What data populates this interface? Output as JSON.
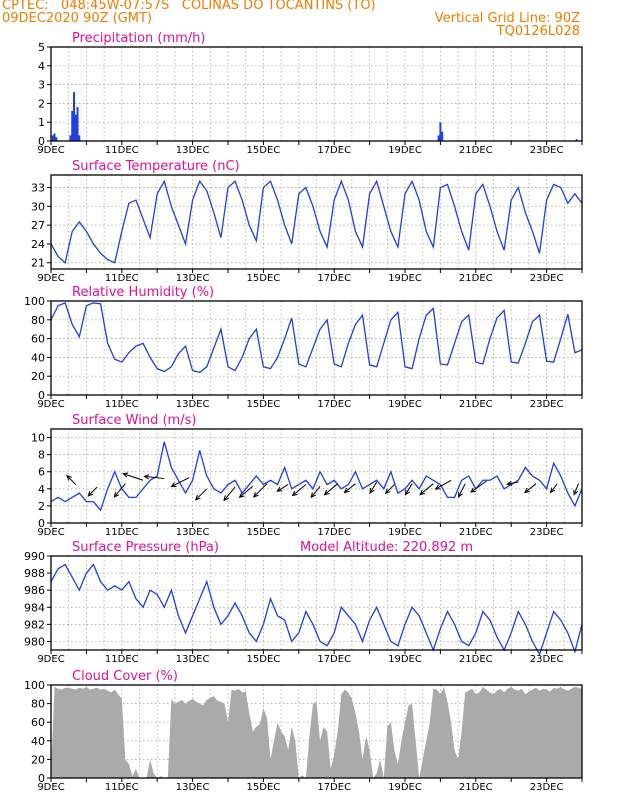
{
  "header": {
    "line1": "CPTEC:   048:45W-07:57S   COLINAS DO TOCANTINS (TO)",
    "line2_left": "09DEC2020 90Z (GMT)",
    "line2_right": "Vertical Grid Line: 90Z",
    "line3_right": "TQ0126L028"
  },
  "colors": {
    "header": "#f07c00",
    "panel_title": "#e0109a",
    "series": "#1f3fe0",
    "precip_bar": "#1f3fe0",
    "cloud_fill": "#aaaaaa",
    "arrow": "#000000"
  },
  "x_tick_labels": [
    "9DEC",
    "11DEC",
    "13DEC",
    "15DEC",
    "17DEC",
    "19DEC",
    "21DEC",
    "23DEC"
  ],
  "chart_data": [
    {
      "id": "precip",
      "type": "bar",
      "title": "Precipitation (mm/h)",
      "ylim": [
        0,
        5
      ],
      "yticks": [
        0,
        1,
        2,
        3,
        4,
        5
      ],
      "x_unit": "days since 9DEC 00Z",
      "xlim": [
        0,
        15
      ],
      "grid": true,
      "bars": [
        [
          0.05,
          0.3
        ],
        [
          0.1,
          0.4
        ],
        [
          0.15,
          0.2
        ],
        [
          0.55,
          0.3
        ],
        [
          0.6,
          1.6
        ],
        [
          0.65,
          2.6
        ],
        [
          0.7,
          1.4
        ],
        [
          0.75,
          1.8
        ],
        [
          0.8,
          0.3
        ],
        [
          10.95,
          0.3
        ],
        [
          11.0,
          1.0
        ],
        [
          11.05,
          0.5
        ],
        [
          14.85,
          0.1
        ],
        [
          7.85,
          0.05
        ],
        [
          3.2,
          0.03
        ],
        [
          6.6,
          0.03
        ]
      ]
    },
    {
      "id": "temp",
      "type": "line",
      "title": "Surface Temperature (nC)",
      "ylim": [
        20,
        35
      ],
      "yticks": [
        21,
        24,
        27,
        30,
        33
      ],
      "xlim": [
        0,
        15
      ],
      "grid": true,
      "x": [
        0,
        0.2,
        0.4,
        0.6,
        0.8,
        1.0,
        1.2,
        1.4,
        1.6,
        1.8,
        2.0,
        2.2,
        2.4,
        2.6,
        2.8,
        3.0,
        3.2,
        3.4,
        3.6,
        3.8,
        4.0,
        4.2,
        4.4,
        4.6,
        4.8,
        5.0,
        5.2,
        5.4,
        5.6,
        5.8,
        6.0,
        6.2,
        6.4,
        6.6,
        6.8,
        7.0,
        7.2,
        7.4,
        7.6,
        7.8,
        8.0,
        8.2,
        8.4,
        8.6,
        8.8,
        9.0,
        9.2,
        9.4,
        9.6,
        9.8,
        10.0,
        10.2,
        10.4,
        10.6,
        10.8,
        11.0,
        11.2,
        11.4,
        11.6,
        11.8,
        12.0,
        12.2,
        12.4,
        12.6,
        12.8,
        13.0,
        13.2,
        13.4,
        13.6,
        13.8,
        14.0,
        14.2,
        14.4,
        14.6,
        14.8,
        15.0
      ],
      "values": [
        24,
        22,
        21,
        26,
        27.5,
        26,
        24,
        22.5,
        21.5,
        21,
        26,
        30.5,
        31,
        28,
        25,
        32,
        34,
        30,
        27,
        24,
        31,
        34,
        32.5,
        29,
        25,
        33,
        34,
        31,
        27,
        24.5,
        33,
        34,
        31,
        27,
        24,
        32,
        33,
        30,
        26,
        23.5,
        31,
        34,
        31,
        26,
        23.5,
        32,
        34,
        30,
        26,
        23.5,
        32,
        34,
        31,
        26,
        23.5,
        33,
        33.5,
        30,
        26,
        23,
        32,
        33.5,
        30,
        26,
        23,
        31,
        33,
        29,
        26,
        22.5,
        31,
        33.5,
        33,
        30.5,
        32,
        30.5
      ]
    },
    {
      "id": "rh",
      "type": "line",
      "title": "Relative Humidity (%)",
      "ylim": [
        0,
        100
      ],
      "yticks": [
        0,
        20,
        40,
        60,
        80,
        100
      ],
      "xlim": [
        0,
        15
      ],
      "grid": true,
      "x": [
        0,
        0.2,
        0.4,
        0.6,
        0.8,
        1.0,
        1.2,
        1.4,
        1.6,
        1.8,
        2.0,
        2.2,
        2.4,
        2.6,
        2.8,
        3.0,
        3.2,
        3.4,
        3.6,
        3.8,
        4.0,
        4.2,
        4.4,
        4.6,
        4.8,
        5.0,
        5.2,
        5.4,
        5.6,
        5.8,
        6.0,
        6.2,
        6.4,
        6.6,
        6.8,
        7.0,
        7.2,
        7.4,
        7.6,
        7.8,
        8.0,
        8.2,
        8.4,
        8.6,
        8.8,
        9.0,
        9.2,
        9.4,
        9.6,
        9.8,
        10.0,
        10.2,
        10.4,
        10.6,
        10.8,
        11.0,
        11.2,
        11.4,
        11.6,
        11.8,
        12.0,
        12.2,
        12.4,
        12.6,
        12.8,
        13.0,
        13.2,
        13.4,
        13.6,
        13.8,
        14.0,
        14.2,
        14.4,
        14.6,
        14.8,
        15.0
      ],
      "values": [
        80,
        95,
        98,
        75,
        62,
        95,
        98,
        97,
        55,
        38,
        35,
        45,
        52,
        55,
        40,
        28,
        25,
        30,
        44,
        52,
        26,
        24,
        30,
        50,
        70,
        30,
        26,
        40,
        60,
        70,
        30,
        28,
        40,
        60,
        82,
        33,
        30,
        50,
        70,
        80,
        33,
        30,
        55,
        75,
        85,
        32,
        30,
        55,
        80,
        88,
        30,
        28,
        60,
        85,
        92,
        33,
        32,
        55,
        78,
        85,
        35,
        33,
        60,
        82,
        90,
        35,
        34,
        55,
        78,
        85,
        36,
        35,
        60,
        86,
        45,
        48
      ]
    },
    {
      "id": "wind",
      "type": "line",
      "title": "Surface Wind (m/s)",
      "ylim": [
        0,
        11
      ],
      "yticks": [
        0,
        2,
        4,
        6,
        8,
        10
      ],
      "xlim": [
        0,
        15
      ],
      "grid": true,
      "x": [
        0,
        0.2,
        0.4,
        0.6,
        0.8,
        1.0,
        1.2,
        1.4,
        1.6,
        1.8,
        2.0,
        2.2,
        2.4,
        2.6,
        2.8,
        3.0,
        3.2,
        3.4,
        3.6,
        3.8,
        4.0,
        4.2,
        4.4,
        4.6,
        4.8,
        5.0,
        5.2,
        5.4,
        5.6,
        5.8,
        6.0,
        6.2,
        6.4,
        6.6,
        6.8,
        7.0,
        7.2,
        7.4,
        7.6,
        7.8,
        8.0,
        8.2,
        8.4,
        8.6,
        8.8,
        9.0,
        9.2,
        9.4,
        9.6,
        9.8,
        10.0,
        10.2,
        10.4,
        10.6,
        10.8,
        11.0,
        11.2,
        11.4,
        11.6,
        11.8,
        12.0,
        12.2,
        12.4,
        12.6,
        12.8,
        13.0,
        13.2,
        13.4,
        13.6,
        13.8,
        14.0,
        14.2,
        14.4,
        14.6,
        14.8,
        15.0
      ],
      "values": [
        2.5,
        3,
        2.5,
        3,
        3.5,
        2.5,
        2.5,
        1.5,
        4,
        6,
        4,
        3,
        3,
        4,
        5,
        5.5,
        9.5,
        6.5,
        5,
        3.5,
        5,
        8.5,
        5.5,
        4,
        3.5,
        4.5,
        5,
        3.5,
        4.5,
        5.5,
        4.5,
        5,
        4.5,
        6.5,
        4,
        4.5,
        5,
        4,
        6,
        4.5,
        5,
        4,
        4.5,
        6,
        4,
        4.5,
        5,
        4,
        6,
        3.5,
        4,
        5,
        4,
        5.5,
        5,
        4.5,
        3,
        3,
        5,
        5.5,
        4,
        5,
        5,
        5.5,
        4,
        4.5,
        5,
        6.5,
        5.5,
        5,
        4,
        7,
        5.5,
        3.5,
        2,
        4
      ],
      "arrows": [
        [
          0.7,
          4.5,
          -0.4,
          0.4
        ],
        [
          1.3,
          4.2,
          -0.4,
          -0.4
        ],
        [
          2.1,
          4.6,
          -0.5,
          -0.6
        ],
        [
          2.6,
          5.0,
          -0.9,
          0.3
        ],
        [
          3.2,
          5.2,
          -0.9,
          0.1
        ],
        [
          3.9,
          5.3,
          -0.8,
          -0.4
        ],
        [
          4.4,
          4.0,
          -0.5,
          -0.5
        ],
        [
          5.2,
          4.2,
          -0.5,
          -0.6
        ],
        [
          5.7,
          4.3,
          -0.6,
          -0.5
        ],
        [
          6.1,
          4.6,
          -0.6,
          -0.6
        ],
        [
          6.7,
          4.5,
          -0.5,
          -0.3
        ],
        [
          7.2,
          4.5,
          -0.6,
          -0.5
        ],
        [
          7.6,
          4.3,
          -0.4,
          -0.5
        ],
        [
          8.1,
          4.6,
          -0.6,
          -0.5
        ],
        [
          8.6,
          4.6,
          -0.5,
          -0.4
        ],
        [
          9.2,
          4.8,
          -0.3,
          -0.5
        ],
        [
          9.7,
          4.5,
          -0.4,
          -0.4
        ],
        [
          10.2,
          4.6,
          -0.3,
          -0.5
        ],
        [
          10.8,
          4.6,
          -0.6,
          -0.5
        ],
        [
          11.3,
          5.0,
          -0.7,
          -0.4
        ],
        [
          11.7,
          4.6,
          -0.3,
          -0.6
        ],
        [
          12.3,
          4.9,
          -0.7,
          -0.5
        ],
        [
          13.2,
          4.8,
          -0.5,
          -0.1
        ],
        [
          13.7,
          4.6,
          -0.5,
          -0.4
        ],
        [
          14.3,
          4.6,
          -0.3,
          -0.4
        ],
        [
          14.9,
          4.6,
          -0.2,
          -0.5
        ]
      ]
    },
    {
      "id": "pressure",
      "type": "line",
      "title": "Surface Pressure (hPa)",
      "subtitle": "Model Altitude: 220.892  m",
      "ylim": [
        979,
        990
      ],
      "yticks": [
        980,
        982,
        984,
        986,
        988,
        990
      ],
      "xlim": [
        0,
        15
      ],
      "grid": true,
      "x": [
        0,
        0.2,
        0.4,
        0.6,
        0.8,
        1.0,
        1.2,
        1.4,
        1.6,
        1.8,
        2.0,
        2.2,
        2.4,
        2.6,
        2.8,
        3.0,
        3.2,
        3.4,
        3.6,
        3.8,
        4.0,
        4.2,
        4.4,
        4.6,
        4.8,
        5.0,
        5.2,
        5.4,
        5.6,
        5.8,
        6.0,
        6.2,
        6.4,
        6.6,
        6.8,
        7.0,
        7.2,
        7.4,
        7.6,
        7.8,
        8.0,
        8.2,
        8.4,
        8.6,
        8.8,
        9.0,
        9.2,
        9.4,
        9.6,
        9.8,
        10.0,
        10.2,
        10.4,
        10.6,
        10.8,
        11.0,
        11.2,
        11.4,
        11.6,
        11.8,
        12.0,
        12.2,
        12.4,
        12.6,
        12.8,
        13.0,
        13.2,
        13.4,
        13.6,
        13.8,
        14.0,
        14.2,
        14.4,
        14.6,
        14.8,
        15.0
      ],
      "values": [
        987,
        988.5,
        989,
        987.5,
        986,
        988,
        989,
        987,
        986,
        986.5,
        986,
        987,
        985,
        984,
        986,
        985.5,
        984,
        986,
        983,
        981,
        983,
        985,
        987,
        984,
        982,
        983,
        984.5,
        983,
        981,
        980,
        982,
        985,
        983,
        982.5,
        980,
        981,
        983.5,
        982,
        980,
        979.5,
        981,
        984,
        983,
        982,
        980,
        982.5,
        984,
        982,
        980,
        979.5,
        982,
        984,
        983,
        981,
        979,
        981.5,
        983.5,
        982,
        980,
        979.5,
        981,
        983.5,
        982.5,
        980.5,
        979,
        981,
        983.5,
        982,
        980,
        978.5,
        981,
        983.5,
        982.5,
        981,
        978.8,
        982
      ]
    },
    {
      "id": "cloud",
      "type": "area",
      "title": "Cloud Cover (%)",
      "ylim": [
        0,
        100
      ],
      "yticks": [
        0,
        20,
        40,
        60,
        80,
        100
      ],
      "xlim": [
        0,
        15
      ],
      "grid": true,
      "x": [
        0,
        0.1,
        0.2,
        0.3,
        0.4,
        0.5,
        0.6,
        0.7,
        0.8,
        0.9,
        1.0,
        1.1,
        1.2,
        1.3,
        1.4,
        1.5,
        1.6,
        1.7,
        1.8,
        1.9,
        2.0,
        2.1,
        2.2,
        2.3,
        2.4,
        2.5,
        2.6,
        2.7,
        2.8,
        2.9,
        3.0,
        3.1,
        3.2,
        3.3,
        3.4,
        3.5,
        3.6,
        3.7,
        3.8,
        3.9,
        4.0,
        4.1,
        4.2,
        4.3,
        4.4,
        4.5,
        4.6,
        4.7,
        4.8,
        4.9,
        5.0,
        5.1,
        5.2,
        5.3,
        5.4,
        5.5,
        5.6,
        5.7,
        5.8,
        5.9,
        6.0,
        6.1,
        6.2,
        6.3,
        6.4,
        6.5,
        6.6,
        6.7,
        6.8,
        6.9,
        7.0,
        7.1,
        7.2,
        7.3,
        7.4,
        7.5,
        7.6,
        7.7,
        7.8,
        7.9,
        8.0,
        8.1,
        8.2,
        8.3,
        8.4,
        8.5,
        8.6,
        8.7,
        8.8,
        8.9,
        9.0,
        9.1,
        9.2,
        9.3,
        9.4,
        9.5,
        9.6,
        9.7,
        9.8,
        9.9,
        10.0,
        10.1,
        10.2,
        10.3,
        10.4,
        10.5,
        10.6,
        10.7,
        10.8,
        10.9,
        11.0,
        11.1,
        11.2,
        11.3,
        11.4,
        11.5,
        11.6,
        11.7,
        11.8,
        11.9,
        12.0,
        12.1,
        12.2,
        12.3,
        12.4,
        12.5,
        12.6,
        12.7,
        12.8,
        12.9,
        13.0,
        13.1,
        13.2,
        13.3,
        13.4,
        13.5,
        13.6,
        13.7,
        13.8,
        13.9,
        14.0,
        14.1,
        14.2,
        14.3,
        14.4,
        14.5,
        14.6,
        14.7,
        14.8,
        14.9,
        15.0
      ],
      "values": [
        5,
        98,
        96,
        95,
        97,
        97,
        96,
        95,
        97,
        96,
        98,
        95,
        96,
        97,
        95,
        96,
        94,
        92,
        95,
        90,
        85,
        20,
        15,
        2,
        10,
        0,
        0,
        0,
        20,
        5,
        0,
        2,
        0,
        0,
        85,
        80,
        82,
        84,
        80,
        83,
        85,
        82,
        80,
        78,
        84,
        86,
        88,
        83,
        82,
        80,
        60,
        95,
        94,
        96,
        92,
        93,
        70,
        50,
        55,
        58,
        75,
        65,
        20,
        40,
        60,
        50,
        45,
        30,
        55,
        40,
        0,
        3,
        0,
        45,
        80,
        82,
        40,
        55,
        50,
        10,
        25,
        50,
        90,
        95,
        92,
        85,
        70,
        50,
        20,
        45,
        30,
        0,
        5,
        20,
        0,
        55,
        60,
        30,
        15,
        40,
        60,
        78,
        80,
        40,
        0,
        20,
        40,
        60,
        96,
        95,
        90,
        98,
        82,
        60,
        30,
        20,
        50,
        92,
        94,
        96,
        90,
        92,
        98,
        95,
        92,
        90,
        94,
        96,
        92,
        96,
        98,
        95,
        94,
        96,
        90,
        93,
        95,
        97,
        94,
        96,
        95,
        93,
        97,
        96,
        98,
        95,
        94,
        96,
        98,
        97,
        96
      ]
    }
  ]
}
